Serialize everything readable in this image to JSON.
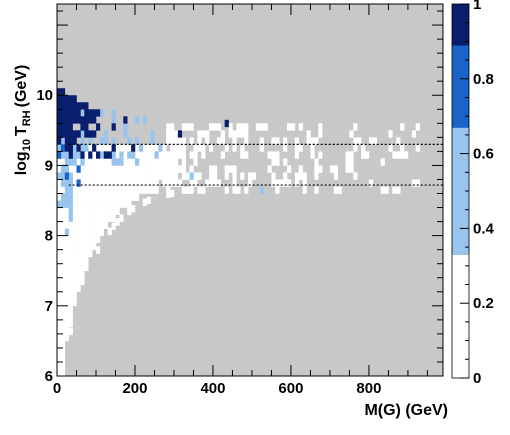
{
  "chart_data": {
    "type": "heatmap",
    "title": "",
    "xlabel": "M(G) (GeV)",
    "ylabel_main": "log",
    "ylabel_sub": "10",
    "ylabel_T": "T",
    "ylabel_sub2": "RH",
    "ylabel_unit": "(GeV)",
    "xlim": [
      0,
      990
    ],
    "ylim": [
      6,
      11.3
    ],
    "x_ticks": [
      {
        "value": 0,
        "label": "0"
      },
      {
        "value": 200,
        "label": "200"
      },
      {
        "value": 400,
        "label": "400"
      },
      {
        "value": 600,
        "label": "600"
      },
      {
        "value": 800,
        "label": "800"
      }
    ],
    "y_ticks": [
      {
        "value": 6,
        "label": "6"
      },
      {
        "value": 7,
        "label": "7"
      },
      {
        "value": 8,
        "label": "8"
      },
      {
        "value": 9,
        "label": "9"
      },
      {
        "value": 10,
        "label": "10"
      }
    ],
    "colorbar": {
      "min": 0,
      "max": 1,
      "ticks": [
        {
          "value": 0,
          "label": "0"
        },
        {
          "value": 0.2,
          "label": "0.2"
        },
        {
          "value": 0.4,
          "label": "0.4"
        },
        {
          "value": 0.6,
          "label": "0.6"
        },
        {
          "value": 0.8,
          "label": "0.8"
        },
        {
          "value": 1,
          "label": "1"
        }
      ],
      "bands": [
        {
          "from": 0.0,
          "to": 0.0013,
          "color": "#c8c8c8"
        },
        {
          "from": 0.0013,
          "to": 0.33,
          "color": "#ffffff"
        },
        {
          "from": 0.33,
          "to": 0.67,
          "color": "#99c4ee"
        },
        {
          "from": 0.67,
          "to": 0.89,
          "color": "#1964c8"
        },
        {
          "from": 0.89,
          "to": 1.0,
          "color": "#0a1e6e"
        }
      ]
    },
    "reference_lines": [
      {
        "y": 9.3,
        "style": "dotted"
      },
      {
        "y": 8.72,
        "style": "dotted"
      }
    ],
    "cell_size": {
      "dx": 10,
      "dy": 0.1
    },
    "regions": {
      "background": {
        "level": "zero",
        "color": "#c8c8c8"
      },
      "fill": {
        "color": "#ffffff"
      },
      "light": {
        "color": "#99c4ee"
      },
      "mid": {
        "color": "#1964c8"
      },
      "dark": {
        "color": "#0a1e6e"
      }
    }
  }
}
